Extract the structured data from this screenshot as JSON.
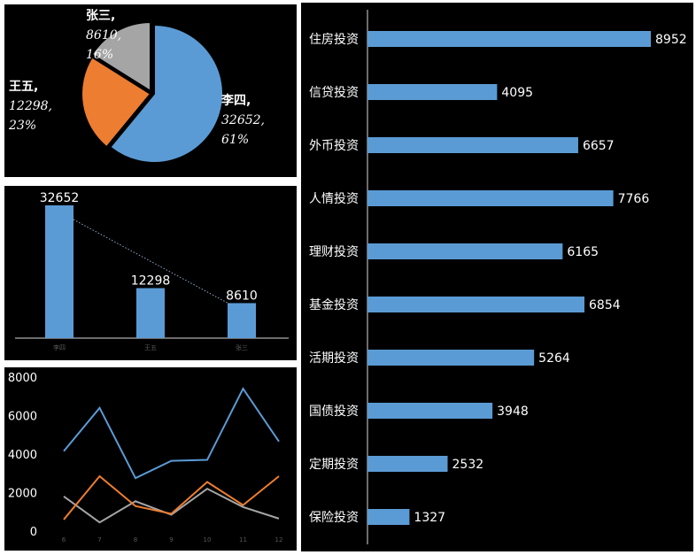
{
  "chart_data": [
    {
      "type": "pie",
      "slices": [
        {
          "label": "李四",
          "value": 32652,
          "percent": "61%",
          "color": "#5B9BD5"
        },
        {
          "label": "王五",
          "value": 12298,
          "percent": "23%",
          "color": "#ED7D31"
        },
        {
          "label": "张三",
          "value": 8610,
          "percent": "16%",
          "color": "#A5A5A5"
        }
      ],
      "label_text": [
        [
          "李四,",
          "32652,",
          "61%"
        ],
        [
          "王五,",
          "12298,",
          "23%"
        ],
        [
          "张三,",
          "8610,",
          "16%"
        ]
      ]
    },
    {
      "type": "bar",
      "categories": [
        "李四",
        "王五",
        "张三"
      ],
      "values": [
        32652,
        12298,
        8610
      ],
      "value_labels": [
        "32652",
        "12298",
        "8610"
      ],
      "color": "#5B9BD5",
      "trendline": "dotted",
      "ylim": [
        0,
        32652
      ]
    },
    {
      "type": "line",
      "x": [
        "6",
        "7",
        "8",
        "9",
        "10",
        "11",
        "12"
      ],
      "yticks": [
        "0",
        "2000",
        "4000",
        "6000",
        "8000"
      ],
      "ylim": [
        0,
        8000
      ],
      "series": [
        {
          "color": "#5B9BD5",
          "values": [
            4150,
            6400,
            2750,
            3650,
            3700,
            7400,
            4650
          ]
        },
        {
          "color": "#ED7D31",
          "values": [
            600,
            2850,
            1300,
            900,
            2550,
            1350,
            2850
          ]
        },
        {
          "color": "#A5A5A5",
          "values": [
            1800,
            450,
            1550,
            850,
            2200,
            1250,
            650
          ]
        }
      ]
    },
    {
      "type": "bar",
      "orientation": "horizontal",
      "categories": [
        "住房投资",
        "信贷投资",
        "外币投资",
        "人情投资",
        "理财投资",
        "基金投资",
        "活期投资",
        "国债投资",
        "定期投资",
        "保险投资"
      ],
      "values": [
        8952,
        4095,
        6657,
        7766,
        6165,
        6854,
        5264,
        3948,
        2532,
        1327
      ],
      "value_labels": [
        "8952",
        "4095",
        "6657",
        "7766",
        "6165",
        "6854",
        "5264",
        "3948",
        "2532",
        "1327"
      ],
      "color": "#5B9BD5",
      "xlim": [
        0,
        8952
      ]
    }
  ]
}
